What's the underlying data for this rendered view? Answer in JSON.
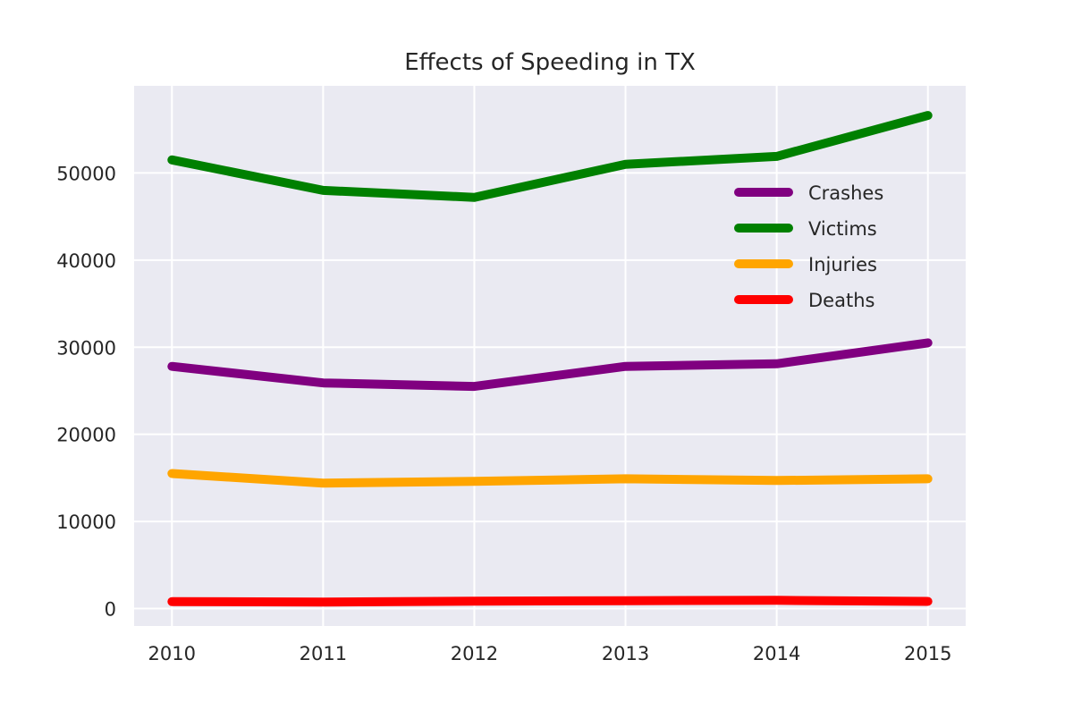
{
  "chart_data": {
    "type": "line",
    "title": "Effects of Speeding in TX",
    "xlabel": "",
    "ylabel": "",
    "x": [
      "2010",
      "2011",
      "2012",
      "2013",
      "2014",
      "2015"
    ],
    "xlim": [
      2009.75,
      2015.25
    ],
    "ylim": [
      -2000,
      60000
    ],
    "yticks": [
      0,
      10000,
      20000,
      30000,
      40000,
      50000
    ],
    "grid": true,
    "legend_position": "upper-right",
    "series": [
      {
        "name": "Crashes",
        "color": "#800080",
        "values": [
          27800,
          25900,
          25500,
          27800,
          28100,
          30500
        ]
      },
      {
        "name": "Victims",
        "color": "#008000",
        "values": [
          51500,
          48000,
          47200,
          51000,
          51900,
          56600
        ]
      },
      {
        "name": "Injuries",
        "color": "#ffa500",
        "values": [
          15500,
          14400,
          14600,
          14900,
          14700,
          14900
        ]
      },
      {
        "name": "Deaths",
        "color": "#ff0000",
        "values": [
          800,
          750,
          850,
          900,
          950,
          820
        ]
      }
    ]
  }
}
